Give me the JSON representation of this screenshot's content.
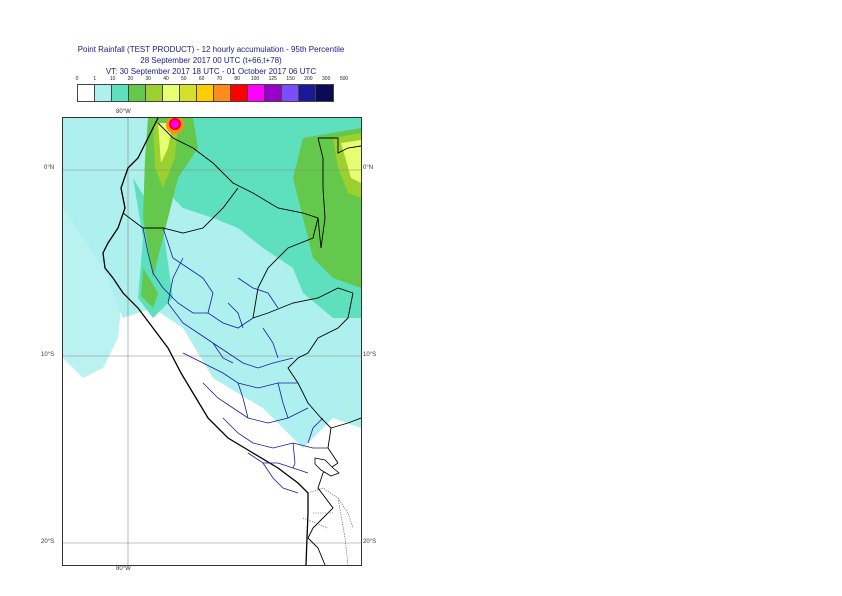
{
  "header": {
    "title_line1": "Point Rainfall (TEST PRODUCT) - 12 hourly accumulation - 95th Percentile",
    "title_line2": "28 September 2017 00 UTC (t+66,t+78)",
    "title_line3": "VT: 30 September 2017 18 UTC - 01 October 2017 06 UTC"
  },
  "legend": {
    "thresholds": [
      "0",
      "1",
      "10",
      "20",
      "30",
      "40",
      "50",
      "60",
      "70",
      "80",
      "100",
      "125",
      "150",
      "200",
      "300",
      "500"
    ],
    "colors": [
      "#ffffff",
      "#aef0ee",
      "#5ee0bf",
      "#63c84b",
      "#9ad12e",
      "#e6ff70",
      "#d4e02a",
      "#ffcc00",
      "#ff8c1a",
      "#ff0000",
      "#ff00ff",
      "#9900cc",
      "#7a4dff",
      "#1a1a99",
      "#0a0a55"
    ]
  },
  "map": {
    "lon_labels": [
      "80°W",
      "80°W"
    ],
    "lat_labels": [
      {
        "left": "0°N",
        "right": "0°N"
      },
      {
        "left": "10°S",
        "right": "10°S"
      },
      {
        "left": "20°S",
        "right": "20°S"
      }
    ]
  }
}
